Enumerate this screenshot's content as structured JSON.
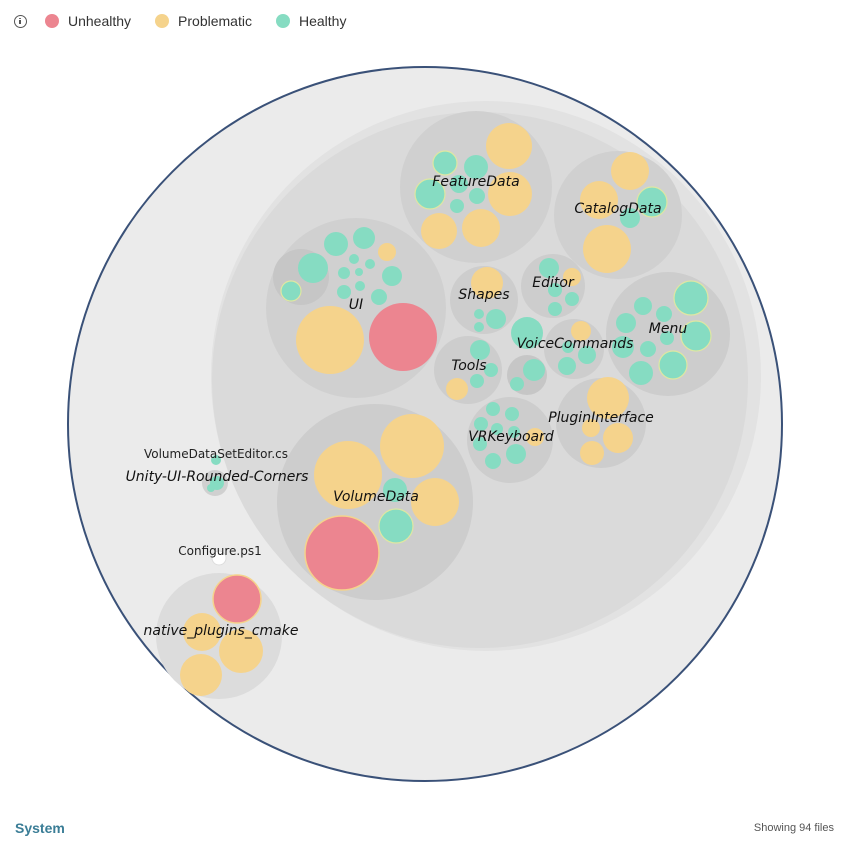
{
  "legend": {
    "items": [
      {
        "label": "Unhealthy",
        "color": "#ec8590"
      },
      {
        "label": "Problematic",
        "color": "#f5d38c"
      },
      {
        "label": "Healthy",
        "color": "#86dcc2"
      }
    ]
  },
  "footer": {
    "scope_label": "System",
    "files_label": "Showing 94 files"
  },
  "colors": {
    "unhealthy": "#ec8590",
    "problematic": "#f5d38c",
    "healthy": "#86dcc2",
    "root_fill": "#ebebeb",
    "root_stroke": "#3a5178",
    "group_fill": "#dcdcdc",
    "folder_fill": "#d2d2d2"
  },
  "labels": {
    "feature_data": "FeatureData",
    "catalog_data": "CatalogData",
    "ui": "UI",
    "shapes": "Shapes",
    "editor": "Editor",
    "menu": "Menu",
    "voice_commands": "VoiceCommands",
    "tools": "Tools",
    "plugin_interface": "PluginInterface",
    "vr_keyboard": "VRKeyboard",
    "volume_data": "VolumeData",
    "volume_dataset_editor": "VolumeDataSetEditor.cs",
    "unity_ui_rounded_corners": "Unity-UI-Rounded-Corners",
    "configure": "Configure.ps1",
    "native_plugins_cmake": "native_plugins_cmake"
  }
}
